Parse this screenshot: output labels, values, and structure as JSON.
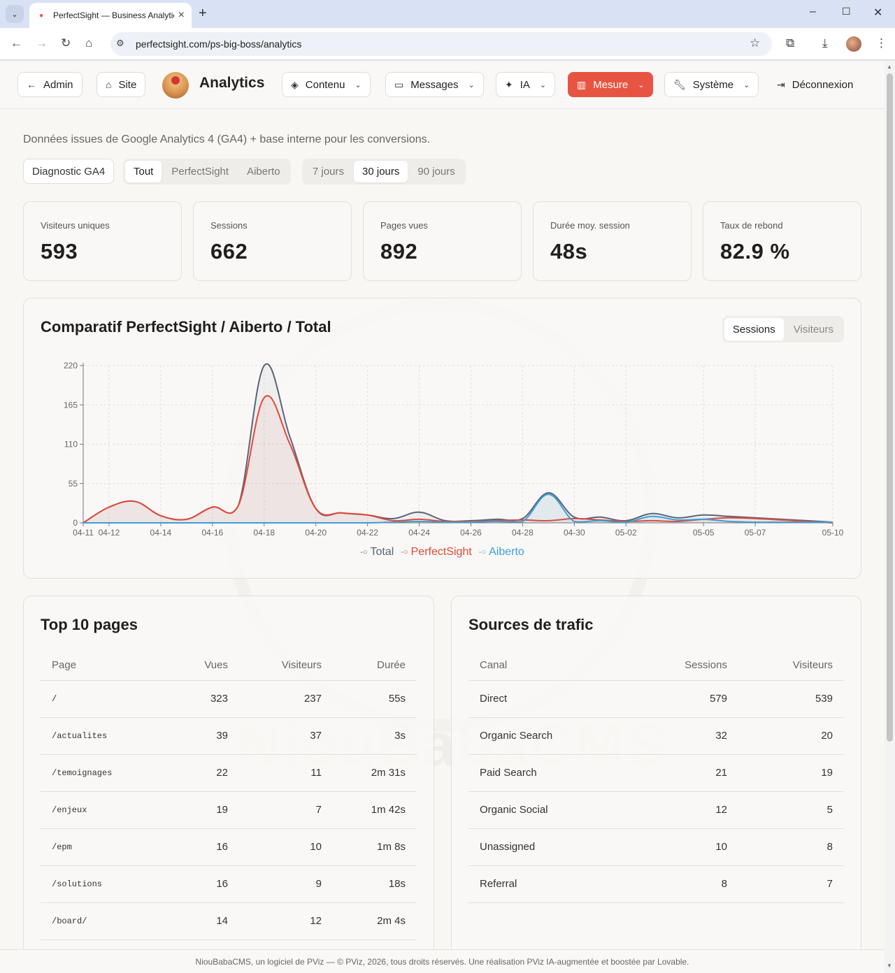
{
  "browser": {
    "tab_title": "PerfectSight — Business Analytics",
    "url": "perfectsight.com/ps-big-boss/analytics"
  },
  "nav": {
    "admin": "Admin",
    "site": "Site",
    "brand": "Analytics",
    "contenu": "Contenu",
    "messages": "Messages",
    "ia": "IA",
    "mesure": "Mesure",
    "systeme": "Système",
    "deconnexion": "Déconnexion"
  },
  "subtitle": "Données issues de Google Analytics 4 (GA4) + base interne pour les conversions.",
  "filters": {
    "diagnostic": "Diagnostic GA4",
    "scope": [
      {
        "label": "Tout",
        "active": true
      },
      {
        "label": "PerfectSight",
        "active": false
      },
      {
        "label": "Aiberto",
        "active": false
      }
    ],
    "period": [
      {
        "label": "7 jours",
        "active": false
      },
      {
        "label": "30 jours",
        "active": true
      },
      {
        "label": "90 jours",
        "active": false
      }
    ]
  },
  "kpis": [
    {
      "label": "Visiteurs uniques",
      "value": "593"
    },
    {
      "label": "Sessions",
      "value": "662"
    },
    {
      "label": "Pages vues",
      "value": "892"
    },
    {
      "label": "Durée moy. session",
      "value": "48s"
    },
    {
      "label": "Taux de rebond",
      "value": "82.9 %"
    }
  ],
  "chart_section": {
    "title": "Comparatif PerfectSight / Aiberto / Total",
    "toggle": [
      {
        "label": "Sessions",
        "active": true
      },
      {
        "label": "Visiteurs",
        "active": false
      }
    ]
  },
  "chart_data": {
    "type": "line",
    "x": [
      "04-11",
      "04-12",
      "04-13",
      "04-14",
      "04-15",
      "04-16",
      "04-17",
      "04-18",
      "04-19",
      "04-20",
      "04-21",
      "04-22",
      "04-23",
      "04-24",
      "04-25",
      "04-26",
      "04-27",
      "04-28",
      "04-29",
      "04-30",
      "05-01",
      "05-02",
      "05-03",
      "05-04",
      "05-05",
      "05-06",
      "05-07",
      "05-08",
      "05-09",
      "05-10"
    ],
    "x_tick_labels": [
      "04-11",
      "04-12",
      "04-14",
      "04-16",
      "04-18",
      "04-20",
      "04-22",
      "04-24",
      "04-26",
      "04-28",
      "04-30",
      "05-02",
      "05-05",
      "05-07",
      "05-10"
    ],
    "yticks": [
      0,
      55,
      110,
      165,
      220
    ],
    "ylim": [
      0,
      220
    ],
    "grid": true,
    "legend_position": "bottom-center",
    "series": [
      {
        "name": "Total",
        "color": "#5b6478",
        "values": [
          0,
          22,
          30,
          10,
          5,
          22,
          24,
          220,
          120,
          20,
          14,
          11,
          6,
          15,
          3,
          3,
          5,
          6,
          42,
          8,
          8,
          3,
          13,
          7,
          11,
          9,
          7,
          5,
          3,
          1
        ]
      },
      {
        "name": "PerfectSight",
        "color": "#e04a3a",
        "values": [
          0,
          22,
          30,
          10,
          5,
          22,
          24,
          175,
          110,
          20,
          14,
          11,
          3,
          5,
          2,
          2,
          3,
          4,
          3,
          6,
          4,
          2,
          3,
          2,
          5,
          7,
          6,
          4,
          2,
          0
        ]
      },
      {
        "name": "Aiberto",
        "color": "#3aa0d8",
        "values": [
          0,
          0,
          0,
          0,
          0,
          0,
          0,
          0,
          0,
          0,
          0,
          0,
          1,
          2,
          1,
          1,
          2,
          2,
          40,
          2,
          3,
          1,
          9,
          4,
          5,
          2,
          1,
          1,
          1,
          1
        ]
      }
    ]
  },
  "top_pages": {
    "title": "Top 10 pages",
    "headers": [
      "Page",
      "Vues",
      "Visiteurs",
      "Durée"
    ],
    "rows": [
      [
        "/",
        "323",
        "237",
        "55s"
      ],
      [
        "/actualites",
        "39",
        "37",
        "3s"
      ],
      [
        "/temoignages",
        "22",
        "11",
        "2m 31s"
      ],
      [
        "/enjeux",
        "19",
        "7",
        "1m 42s"
      ],
      [
        "/epm",
        "16",
        "10",
        "1m 8s"
      ],
      [
        "/solutions",
        "16",
        "9",
        "18s"
      ],
      [
        "/board/",
        "14",
        "12",
        "2m 4s"
      ]
    ]
  },
  "traffic_sources": {
    "title": "Sources de trafic",
    "headers": [
      "Canal",
      "Sessions",
      "Visiteurs"
    ],
    "rows": [
      [
        "Direct",
        "579",
        "539"
      ],
      [
        "Organic Search",
        "32",
        "20"
      ],
      [
        "Paid Search",
        "21",
        "19"
      ],
      [
        "Organic Social",
        "12",
        "5"
      ],
      [
        "Unassigned",
        "10",
        "8"
      ],
      [
        "Referral",
        "8",
        "7"
      ]
    ]
  },
  "watermark": "NiouBabaCMS",
  "footer": "NiouBabaCMS, un logiciel de PViz — © PViz, 2026, tous droits réservés. Une réalisation PViz IA-augmentée et boostée par Lovable."
}
